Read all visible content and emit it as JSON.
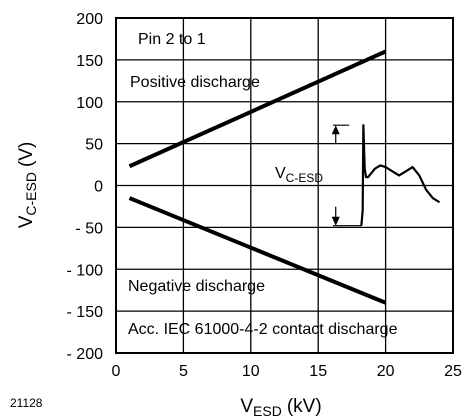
{
  "chart_data": {
    "type": "line",
    "figure_id": "21128",
    "xlabel": {
      "main": "V",
      "sub": "ESD",
      "unit": "(kV)"
    },
    "ylabel": {
      "main": "V",
      "sub": "C-ESD",
      "unit": "(V)"
    },
    "xlim": [
      0,
      25
    ],
    "ylim": [
      -200,
      200
    ],
    "xticks": [
      0,
      5,
      10,
      15,
      20,
      25
    ],
    "xtick_labels": [
      "0",
      "5",
      "10",
      "15",
      "20",
      "25"
    ],
    "yticks": [
      200,
      150,
      100,
      50,
      0,
      -50,
      -100,
      -150,
      -200
    ],
    "ytick_labels": [
      "200",
      "150",
      "100",
      "50",
      "0",
      "- 50",
      "- 100",
      "- 150",
      "- 200"
    ],
    "grid": true,
    "series": [
      {
        "name": "Positive discharge",
        "x": [
          1,
          20
        ],
        "y": [
          23,
          160
        ]
      },
      {
        "name": "Negative discharge",
        "x": [
          1,
          20
        ],
        "y": [
          -15,
          -140
        ]
      }
    ],
    "annotations": {
      "pin": "Pin 2 to 1",
      "positive": "Positive discharge",
      "negative": "Negative discharge",
      "standard": "Acc. IEC 61000-4-2 contact discharge",
      "inset_label_main": "V",
      "inset_label_sub": "C-ESD"
    },
    "inset_waveform": {
      "x": [
        18.2,
        18.3,
        18.35,
        18.45,
        18.55,
        18.7,
        18.9,
        19.2,
        19.6,
        20.0,
        20.5,
        21.0,
        21.5,
        22.0,
        22.5,
        23.0,
        23.5,
        24.0
      ],
      "y": [
        -48,
        -30,
        72,
        20,
        10,
        10,
        14,
        20,
        24,
        22,
        17,
        12,
        17,
        22,
        12,
        -5,
        -15,
        -20
      ]
    }
  }
}
